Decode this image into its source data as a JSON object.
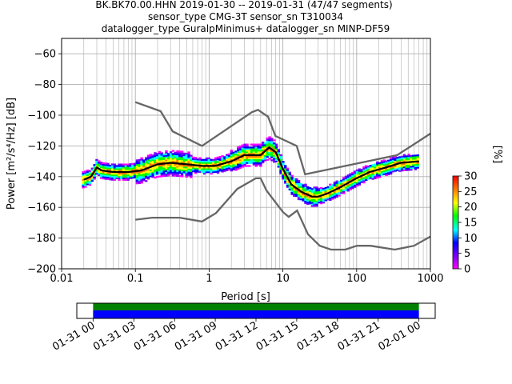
{
  "title": {
    "line1": "BK.BK70.00.HHN   2019-01-30 -- 2019-01-31  (47/47 segments)",
    "line2": "sensor_type CMG-3T sensor_sn T310034",
    "line3": "datalogger_type GuralpMinimus+ datalogger_sn MINP-DF59"
  },
  "colors": {
    "model_curves": "#666666",
    "mode_line": "#000000",
    "grid": "#b0b0b0",
    "coverage_top": "#008000",
    "coverage_bottom": "#0000ff"
  },
  "chart_data": [
    {
      "type": "heatmap",
      "subtype": "probabilistic power spectral density",
      "xlabel": "Period [s]",
      "ylabel": "Power [m²/s⁴/Hz] [dB]",
      "x_scale": "log",
      "xlim": [
        0.01,
        1000
      ],
      "ylim": [
        -200,
        -50
      ],
      "x_ticks": [
        0.01,
        0.1,
        1,
        10,
        100,
        1000
      ],
      "x_tick_labels": [
        "0.01",
        "0.1",
        "1",
        "10",
        "100",
        "1000"
      ],
      "y_ticks": [
        -200,
        -180,
        -160,
        -140,
        -120,
        -100,
        -80,
        -60
      ],
      "y_tick_labels": [
        "−200",
        "−180",
        "−160",
        "−140",
        "−120",
        "−100",
        "−80",
        "−60"
      ],
      "grid": true,
      "colorbar": {
        "label": "[%]",
        "range": [
          0,
          30
        ],
        "ticks": [
          0,
          5,
          10,
          15,
          20,
          25,
          30
        ],
        "tick_labels": [
          "0",
          "5",
          "10",
          "15",
          "20",
          "25",
          "30"
        ],
        "colormap": [
          "#ff00ff",
          "#7a00ff",
          "#0000ff",
          "#00ffff",
          "#00ff00",
          "#ffff00",
          "#ff8000",
          "#ff0000"
        ]
      },
      "series": [
        {
          "role": "high noise model",
          "x": [
            0.1,
            0.22,
            0.32,
            0.8,
            3.8,
            4.6,
            6.3,
            7.9,
            15.4,
            20,
            354.8,
            1000
          ],
          "y": [
            -91.5,
            -97.4,
            -110.5,
            -120.0,
            -98.0,
            -96.5,
            -101.0,
            -113.5,
            -120.0,
            -138.5,
            -126.0,
            -112.0
          ]
        },
        {
          "role": "low noise model",
          "x": [
            0.1,
            0.17,
            0.4,
            0.8,
            1.24,
            2.4,
            4.3,
            5.0,
            6.0,
            10.0,
            12.0,
            15.6,
            21.9,
            31.6,
            45.0,
            70.0,
            101.0,
            154.0,
            328.0,
            600.0,
            1000.0
          ],
          "y": [
            -168.0,
            -166.7,
            -166.7,
            -169.2,
            -163.7,
            -148.0,
            -141.1,
            -141.1,
            -149.0,
            -163.0,
            -166.2,
            -162.1,
            -177.5,
            -185.0,
            -187.5,
            -187.5,
            -185.0,
            -185.0,
            -187.5,
            -185.0,
            -179.0
          ]
        },
        {
          "role": "mode",
          "x": [
            0.02,
            0.025,
            0.03,
            0.035,
            0.05,
            0.08,
            0.12,
            0.2,
            0.3,
            0.5,
            0.8,
            1.2,
            2.0,
            3.0,
            5.0,
            6.5,
            8.0,
            10.0,
            13.0,
            18.0,
            25.0,
            30.0,
            40.0,
            60.0,
            100.0,
            150.0,
            250.0,
            400.0,
            700.0
          ],
          "y": [
            -142,
            -140,
            -134,
            -136,
            -137,
            -137,
            -136,
            -132,
            -131,
            -132,
            -133,
            -133,
            -130,
            -126,
            -126,
            -121,
            -124,
            -135,
            -145,
            -150,
            -153,
            -153,
            -151,
            -147,
            -141,
            -137,
            -134,
            -131,
            -130
          ]
        }
      ]
    },
    {
      "type": "bar",
      "subtype": "data coverage timeline",
      "x_ticks": [
        "01-31 00",
        "01-31 03",
        "01-31 06",
        "01-31 09",
        "01-31 12",
        "01-31 15",
        "01-31 18",
        "01-31 21",
        "02-01 00"
      ],
      "coverage_start_hour": 0,
      "coverage_end_hour": 24,
      "axis_start_hour": -1.2,
      "axis_end_hour": 25.2
    }
  ]
}
